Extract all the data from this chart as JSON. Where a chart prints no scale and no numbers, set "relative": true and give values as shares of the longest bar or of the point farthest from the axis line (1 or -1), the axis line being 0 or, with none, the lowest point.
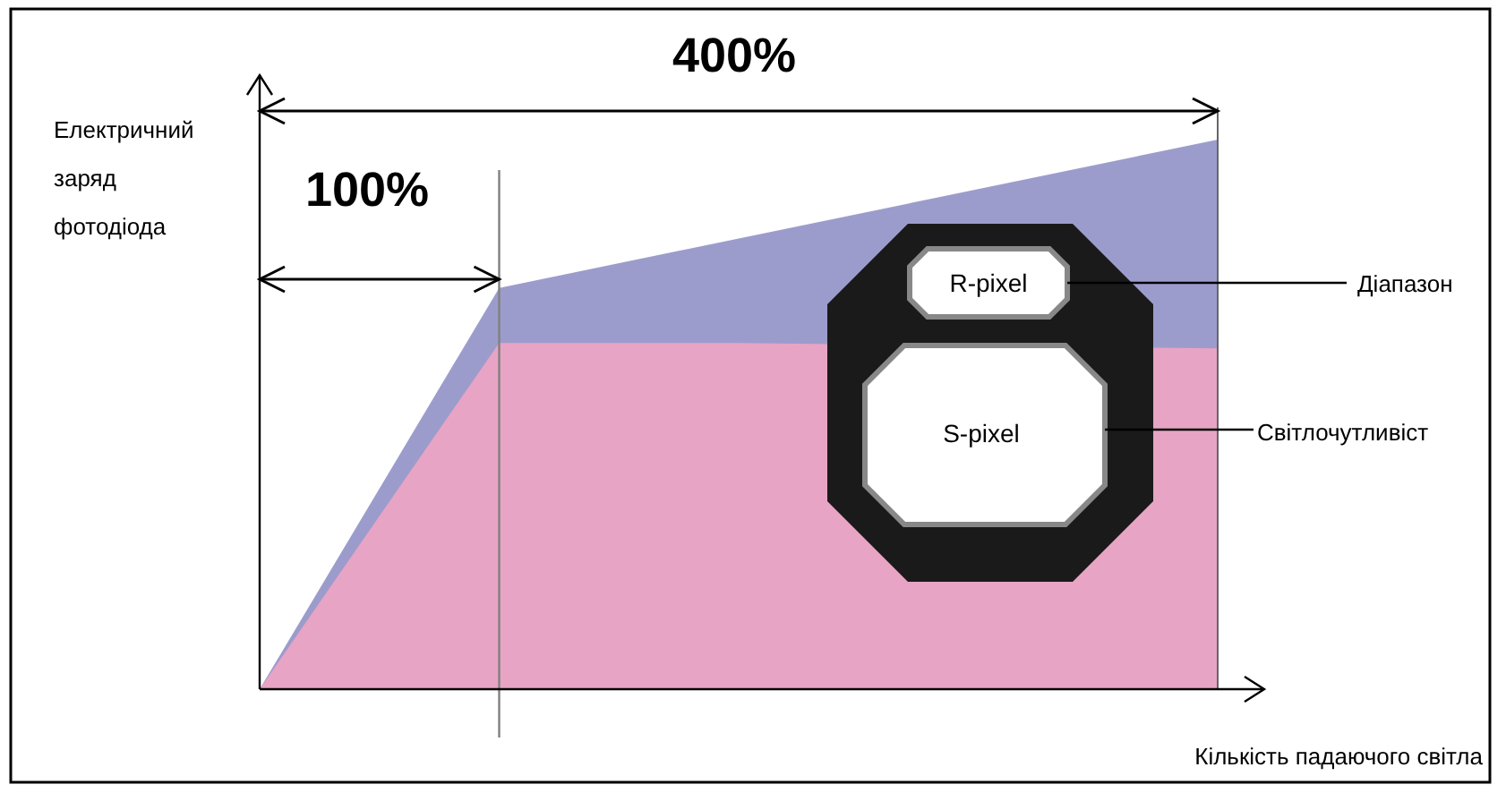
{
  "chart_data": {
    "type": "area",
    "relative": true,
    "xlabel": "Кількість падаючого світла",
    "ylabel": "Електричний заряд фотодіода",
    "categories": [
      null,
      null,
      null,
      null,
      null
    ],
    "series": [
      {
        "color": "#9c9ccc",
        "values": [
          0,
          0.73,
          0.82,
          0.91,
          1
        ]
      },
      {
        "color": "#e8a4c4",
        "values": [
          0,
          0.63,
          0.63,
          null,
          0.62
        ]
      }
    ],
    "annotations": [
      "400%",
      "100%",
      "R-pixel",
      "S-pixel",
      "Діапазон",
      "Світлочутливіст"
    ]
  }
}
